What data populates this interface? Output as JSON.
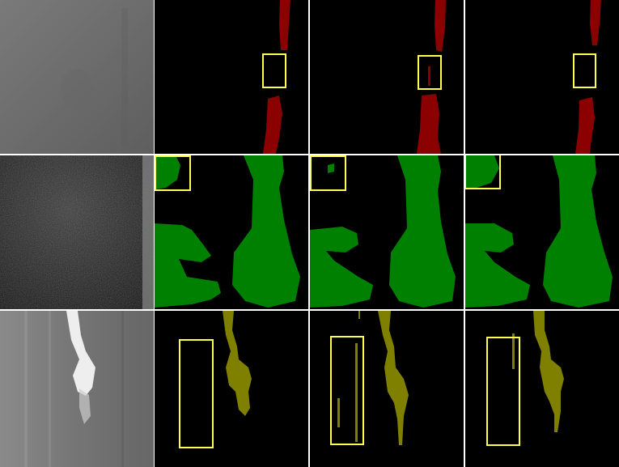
{
  "figure": {
    "rows": [
      {
        "id": "row-1",
        "mask_color": "#8B0000",
        "photo_tone": "gray-smooth",
        "columns": [
          "input-image",
          "ground-truth",
          "prediction-a",
          "prediction-b"
        ]
      },
      {
        "id": "row-2",
        "mask_color": "#008000",
        "photo_tone": "dark-noisy",
        "columns": [
          "input-image",
          "ground-truth",
          "prediction-a",
          "prediction-b"
        ]
      },
      {
        "id": "row-3",
        "mask_color": "#808000",
        "photo_tone": "gray-streaked",
        "columns": [
          "input-image",
          "ground-truth",
          "prediction-a",
          "prediction-b"
        ]
      }
    ],
    "highlight_box_color": "#FFFF4D",
    "separator_color": "#FFFFFF",
    "background_color": "#000000"
  }
}
